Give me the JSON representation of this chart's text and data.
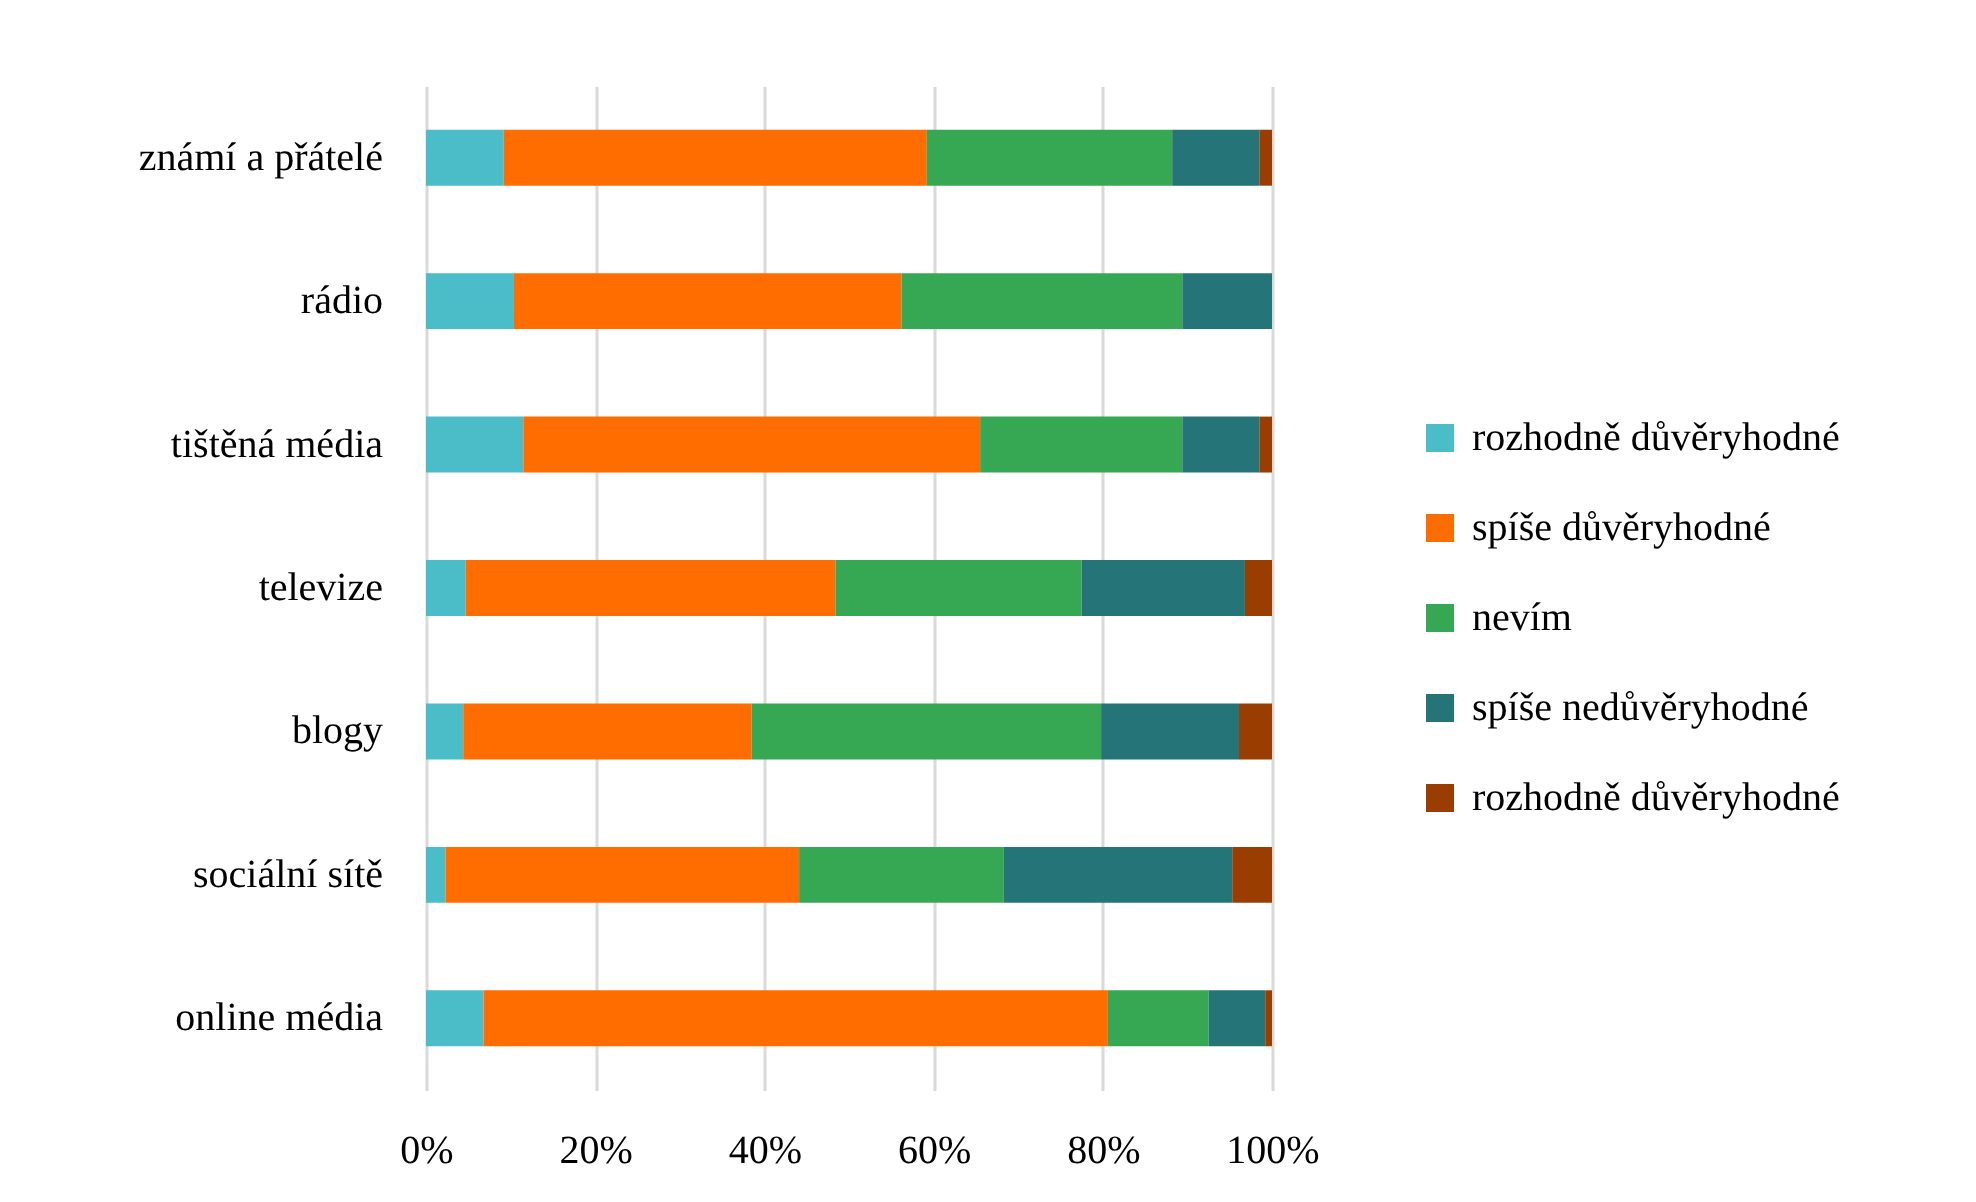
{
  "chart_data": {
    "type": "bar",
    "orientation": "horizontal",
    "stacked": true,
    "categories": [
      "známí a přátelé",
      "rádio",
      "tištěná média",
      "televize",
      "blogy",
      "sociální sítě",
      "online média"
    ],
    "series": [
      {
        "name": "rozhodně důvěryhodné",
        "color": "#4bbdc8",
        "values": [
          9.2,
          10.4,
          11.5,
          4.7,
          4.4,
          2.3,
          6.8
        ]
      },
      {
        "name": "spíše důvěryhodné",
        "color": "#ff6d00",
        "values": [
          50.0,
          45.8,
          54.0,
          43.7,
          34.1,
          41.8,
          73.8
        ]
      },
      {
        "name": "nevím",
        "color": "#36a853",
        "values": [
          29.0,
          33.2,
          23.9,
          29.1,
          41.3,
          24.2,
          11.9
        ]
      },
      {
        "name": "spíše nedůvěryhodné",
        "color": "#257478",
        "values": [
          10.3,
          10.6,
          9.1,
          19.3,
          16.3,
          27.0,
          6.7
        ]
      },
      {
        "name": "rozhodně důvěryhodné",
        "color": "#9a3d00",
        "values": [
          1.5,
          0,
          1.5,
          3.2,
          3.9,
          4.7,
          0.8
        ]
      }
    ],
    "xlim": [
      0,
      100
    ],
    "xticks": [
      {
        "value": 0,
        "label": "0%"
      },
      {
        "value": 20,
        "label": "20%"
      },
      {
        "value": 40,
        "label": "40%"
      },
      {
        "value": 60,
        "label": "60%"
      },
      {
        "value": 80,
        "label": "80%"
      },
      {
        "value": 100,
        "label": "100%"
      }
    ],
    "grid": "x",
    "legend": "right"
  }
}
